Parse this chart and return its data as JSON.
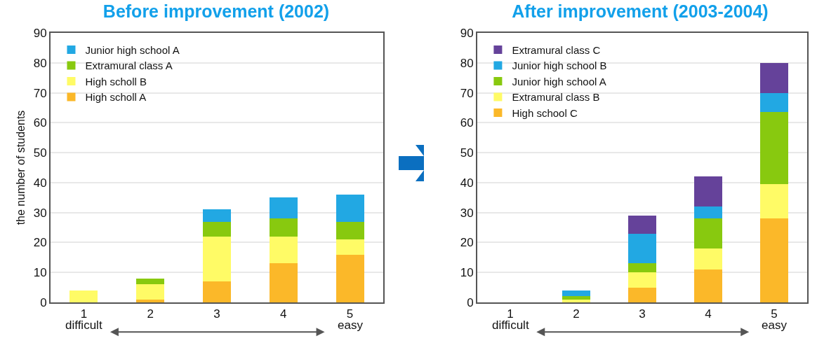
{
  "chart_data": [
    {
      "type": "bar",
      "title": "Before improvement (2002)",
      "ylabel": "the number of students",
      "categories": [
        "1",
        "2",
        "3",
        "4",
        "5"
      ],
      "stacked": true,
      "ylim": [
        0,
        90
      ],
      "yticks": [
        0,
        10,
        20,
        30,
        40,
        50,
        60,
        70,
        80,
        90
      ],
      "grid": "y",
      "legend": "top left",
      "annotations": [
        "difficult",
        "easy"
      ],
      "series": [
        {
          "name": "High scholl A",
          "color": "#fbb829",
          "values": [
            0,
            1,
            7,
            13,
            16
          ]
        },
        {
          "name": "High scholl B",
          "color": "#fffb66",
          "values": [
            4,
            5,
            15,
            9,
            5
          ]
        },
        {
          "name": "Extramural class A",
          "color": "#88c90f",
          "values": [
            0,
            2,
            5,
            6,
            6
          ]
        },
        {
          "name": "Junior high school A",
          "color": "#22a8e3",
          "values": [
            0,
            0,
            4,
            7,
            9
          ]
        }
      ]
    },
    {
      "type": "bar",
      "title": "After improvement (2003-2004)",
      "categories": [
        "1",
        "2",
        "3",
        "4",
        "5"
      ],
      "stacked": true,
      "ylim": [
        0,
        90
      ],
      "yticks": [
        0,
        10,
        20,
        30,
        40,
        50,
        60,
        70,
        80,
        90
      ],
      "grid": "y",
      "legend": "top left",
      "annotations": [
        "difficult",
        "easy"
      ],
      "series": [
        {
          "name": "High school C",
          "color": "#fbb829",
          "values": [
            0,
            0,
            5,
            11,
            28
          ]
        },
        {
          "name": "Extramural class B",
          "color": "#fffb66",
          "values": [
            0,
            1,
            5,
            7,
            11.5
          ]
        },
        {
          "name": "Junior high school A",
          "color": "#88c90f",
          "values": [
            0,
            1,
            3,
            10,
            24
          ]
        },
        {
          "name": "Junior high school B",
          "color": "#22a8e3",
          "values": [
            0,
            2,
            10,
            4,
            6.5
          ]
        },
        {
          "name": "Extramural class C",
          "color": "#65429a",
          "values": [
            0,
            0,
            6,
            10,
            10
          ]
        }
      ]
    }
  ]
}
